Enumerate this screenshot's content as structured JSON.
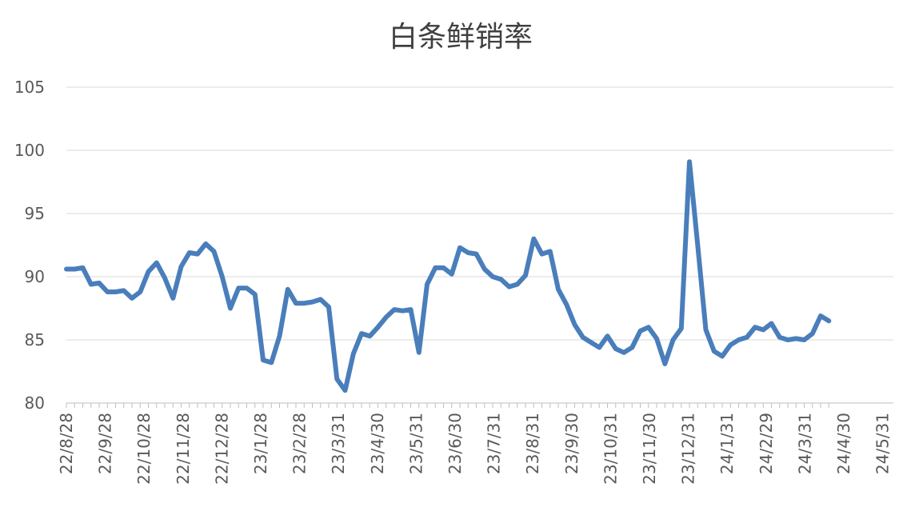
{
  "chart_data": {
    "type": "line",
    "title": "白条鲜销率",
    "xlabel": "",
    "ylabel": "",
    "ylim": [
      80,
      105
    ],
    "yticks": [
      80,
      85,
      90,
      95,
      100,
      105
    ],
    "grid": "horizontal",
    "legend": "none",
    "x_tick_labels": [
      "22/8/28",
      "22/9/28",
      "22/10/28",
      "22/11/28",
      "22/12/28",
      "23/1/28",
      "23/2/28",
      "23/3/31",
      "23/4/30",
      "23/5/31",
      "23/6/30",
      "23/7/31",
      "23/8/31",
      "23/9/30",
      "23/10/31",
      "23/11/30",
      "23/12/31",
      "24/1/31",
      "24/2/29",
      "24/3/31",
      "24/4/30",
      "24/5/31"
    ],
    "series": [
      {
        "color": "#4A7EBB",
        "values": [
          90.6,
          90.6,
          90.7,
          89.4,
          89.5,
          88.8,
          88.8,
          88.9,
          88.3,
          88.8,
          90.4,
          91.1,
          89.9,
          88.3,
          90.8,
          91.9,
          91.8,
          92.6,
          92.0,
          90.0,
          87.5,
          89.1,
          89.1,
          88.6,
          83.4,
          83.2,
          85.3,
          89.0,
          87.9,
          87.9,
          88.0,
          88.2,
          87.6,
          81.9,
          81.0,
          83.9,
          85.5,
          85.3,
          86.0,
          86.8,
          87.4,
          87.3,
          87.4,
          84.0,
          89.4,
          90.7,
          90.7,
          90.2,
          92.3,
          91.9,
          91.8,
          90.6,
          90.0,
          89.8,
          89.2,
          89.4,
          90.1,
          93.0,
          91.8,
          92.0,
          89.0,
          87.8,
          86.2,
          85.2,
          84.8,
          84.4,
          85.3,
          84.3,
          84.0,
          84.4,
          85.7,
          86.0,
          85.1,
          83.1,
          85.0,
          85.9,
          99.1,
          92.5,
          85.8,
          84.1,
          83.7,
          84.6,
          85.0,
          85.2,
          86.0,
          85.8,
          86.3,
          85.2,
          85.0,
          85.1,
          85.0,
          85.5,
          86.9,
          86.5
        ]
      }
    ]
  }
}
